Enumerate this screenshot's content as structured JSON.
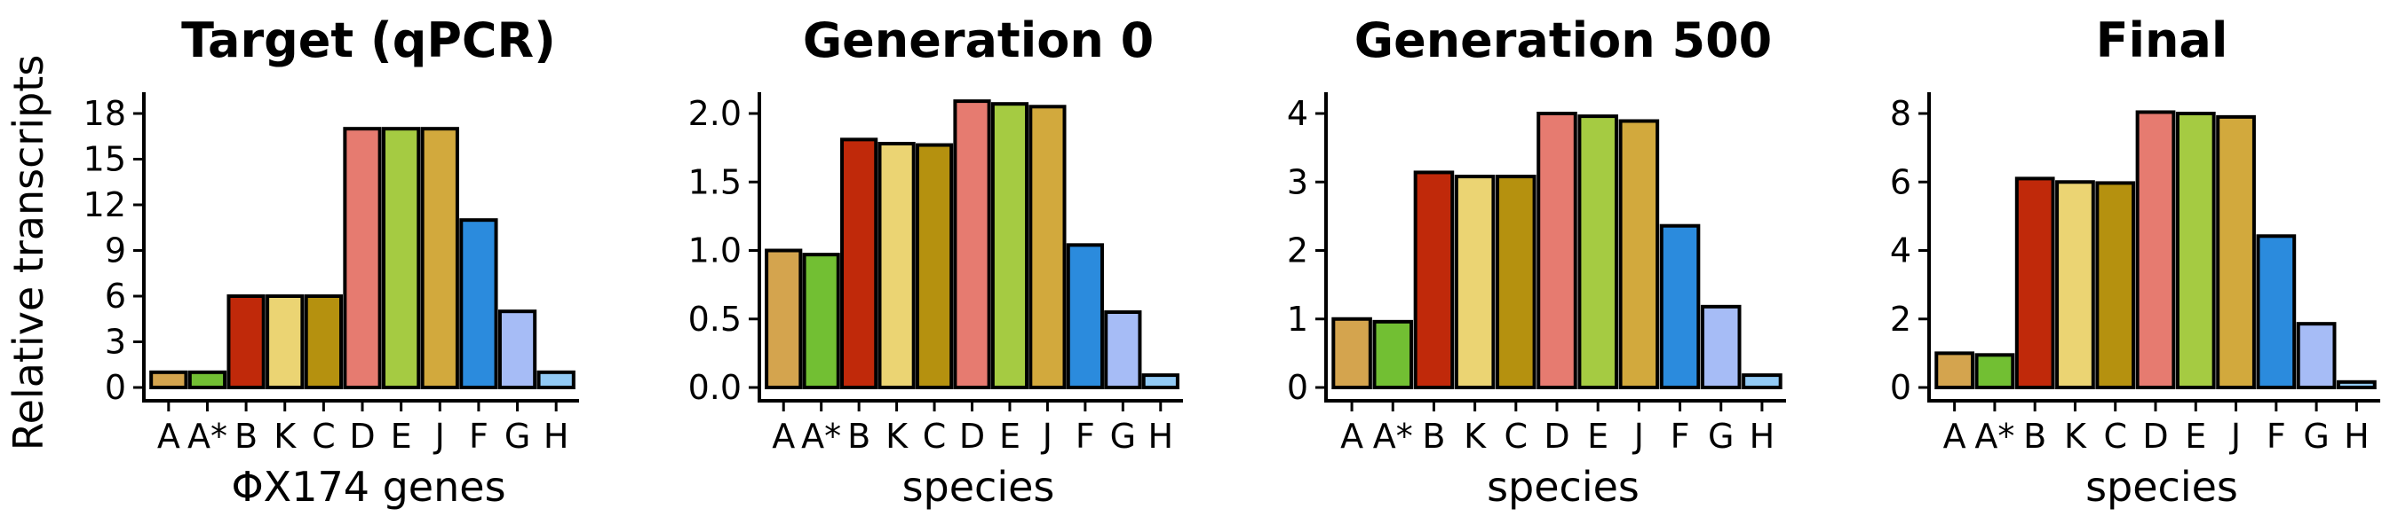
{
  "figure": {
    "ylabel": "Relative transcripts"
  },
  "chart_data": [
    {
      "type": "bar",
      "title": "Target (qPCR)",
      "xlabel": "ΦX174 genes",
      "ylabel": "Relative transcripts",
      "categories": [
        "A",
        "A*",
        "B",
        "K",
        "C",
        "D",
        "E",
        "J",
        "F",
        "G",
        "H"
      ],
      "values": [
        1,
        1,
        6,
        6,
        6,
        17,
        17,
        17,
        11,
        5,
        1
      ],
      "ylim": [
        0,
        18
      ],
      "yticks": [
        "0",
        "3",
        "6",
        "9",
        "12",
        "15",
        "18"
      ],
      "colors": [
        "#D4A44E",
        "#72BF33",
        "#C0290A",
        "#EBD473",
        "#B5910F",
        "#E67B70",
        "#A5CB42",
        "#D2A93D",
        "#2B8BDD",
        "#A6BCF6",
        "#92CAF5"
      ],
      "grid": false
    },
    {
      "type": "bar",
      "title": "Generation 0",
      "xlabel": "species",
      "categories": [
        "A",
        "A*",
        "B",
        "K",
        "C",
        "D",
        "E",
        "J",
        "F",
        "G",
        "H"
      ],
      "values": [
        1.0,
        0.97,
        1.81,
        1.78,
        1.77,
        2.09,
        2.07,
        2.05,
        1.04,
        0.55,
        0.09
      ],
      "ylim": [
        0,
        2.1
      ],
      "yticks": [
        "0.0",
        "0.5",
        "1.0",
        "1.5",
        "2.0"
      ],
      "colors": [
        "#D4A44E",
        "#72BF33",
        "#C0290A",
        "#EBD473",
        "#B5910F",
        "#E67B70",
        "#A5CB42",
        "#D2A93D",
        "#2B8BDD",
        "#A6BCF6",
        "#92CAF5"
      ],
      "grid": false
    },
    {
      "type": "bar",
      "title": "Generation 500",
      "xlabel": "species",
      "categories": [
        "A",
        "A*",
        "B",
        "K",
        "C",
        "D",
        "E",
        "J",
        "F",
        "G",
        "H"
      ],
      "values": [
        1.0,
        0.96,
        3.14,
        3.08,
        3.08,
        4.0,
        3.96,
        3.89,
        2.36,
        1.18,
        0.18
      ],
      "ylim": [
        0,
        4.1
      ],
      "yticks": [
        "0",
        "1",
        "2",
        "3",
        "4"
      ],
      "colors": [
        "#D4A44E",
        "#72BF33",
        "#C0290A",
        "#EBD473",
        "#B5910F",
        "#E67B70",
        "#A5CB42",
        "#D2A93D",
        "#2B8BDD",
        "#A6BCF6",
        "#92CAF5"
      ],
      "grid": false
    },
    {
      "type": "bar",
      "title": "Final",
      "xlabel": "species",
      "categories": [
        "A",
        "A*",
        "B",
        "K",
        "C",
        "D",
        "E",
        "J",
        "F",
        "G",
        "H"
      ],
      "values": [
        1.0,
        0.95,
        6.1,
        6.0,
        5.97,
        8.04,
        8.0,
        7.9,
        4.42,
        1.86,
        0.16
      ],
      "ylim": [
        0,
        8.4
      ],
      "yticks": [
        "0",
        "2",
        "4",
        "6",
        "8"
      ],
      "colors": [
        "#D4A44E",
        "#72BF33",
        "#C0290A",
        "#EBD473",
        "#B5910F",
        "#E67B70",
        "#A5CB42",
        "#D2A93D",
        "#2B8BDD",
        "#A6BCF6",
        "#92CAF5"
      ],
      "grid": false
    }
  ]
}
